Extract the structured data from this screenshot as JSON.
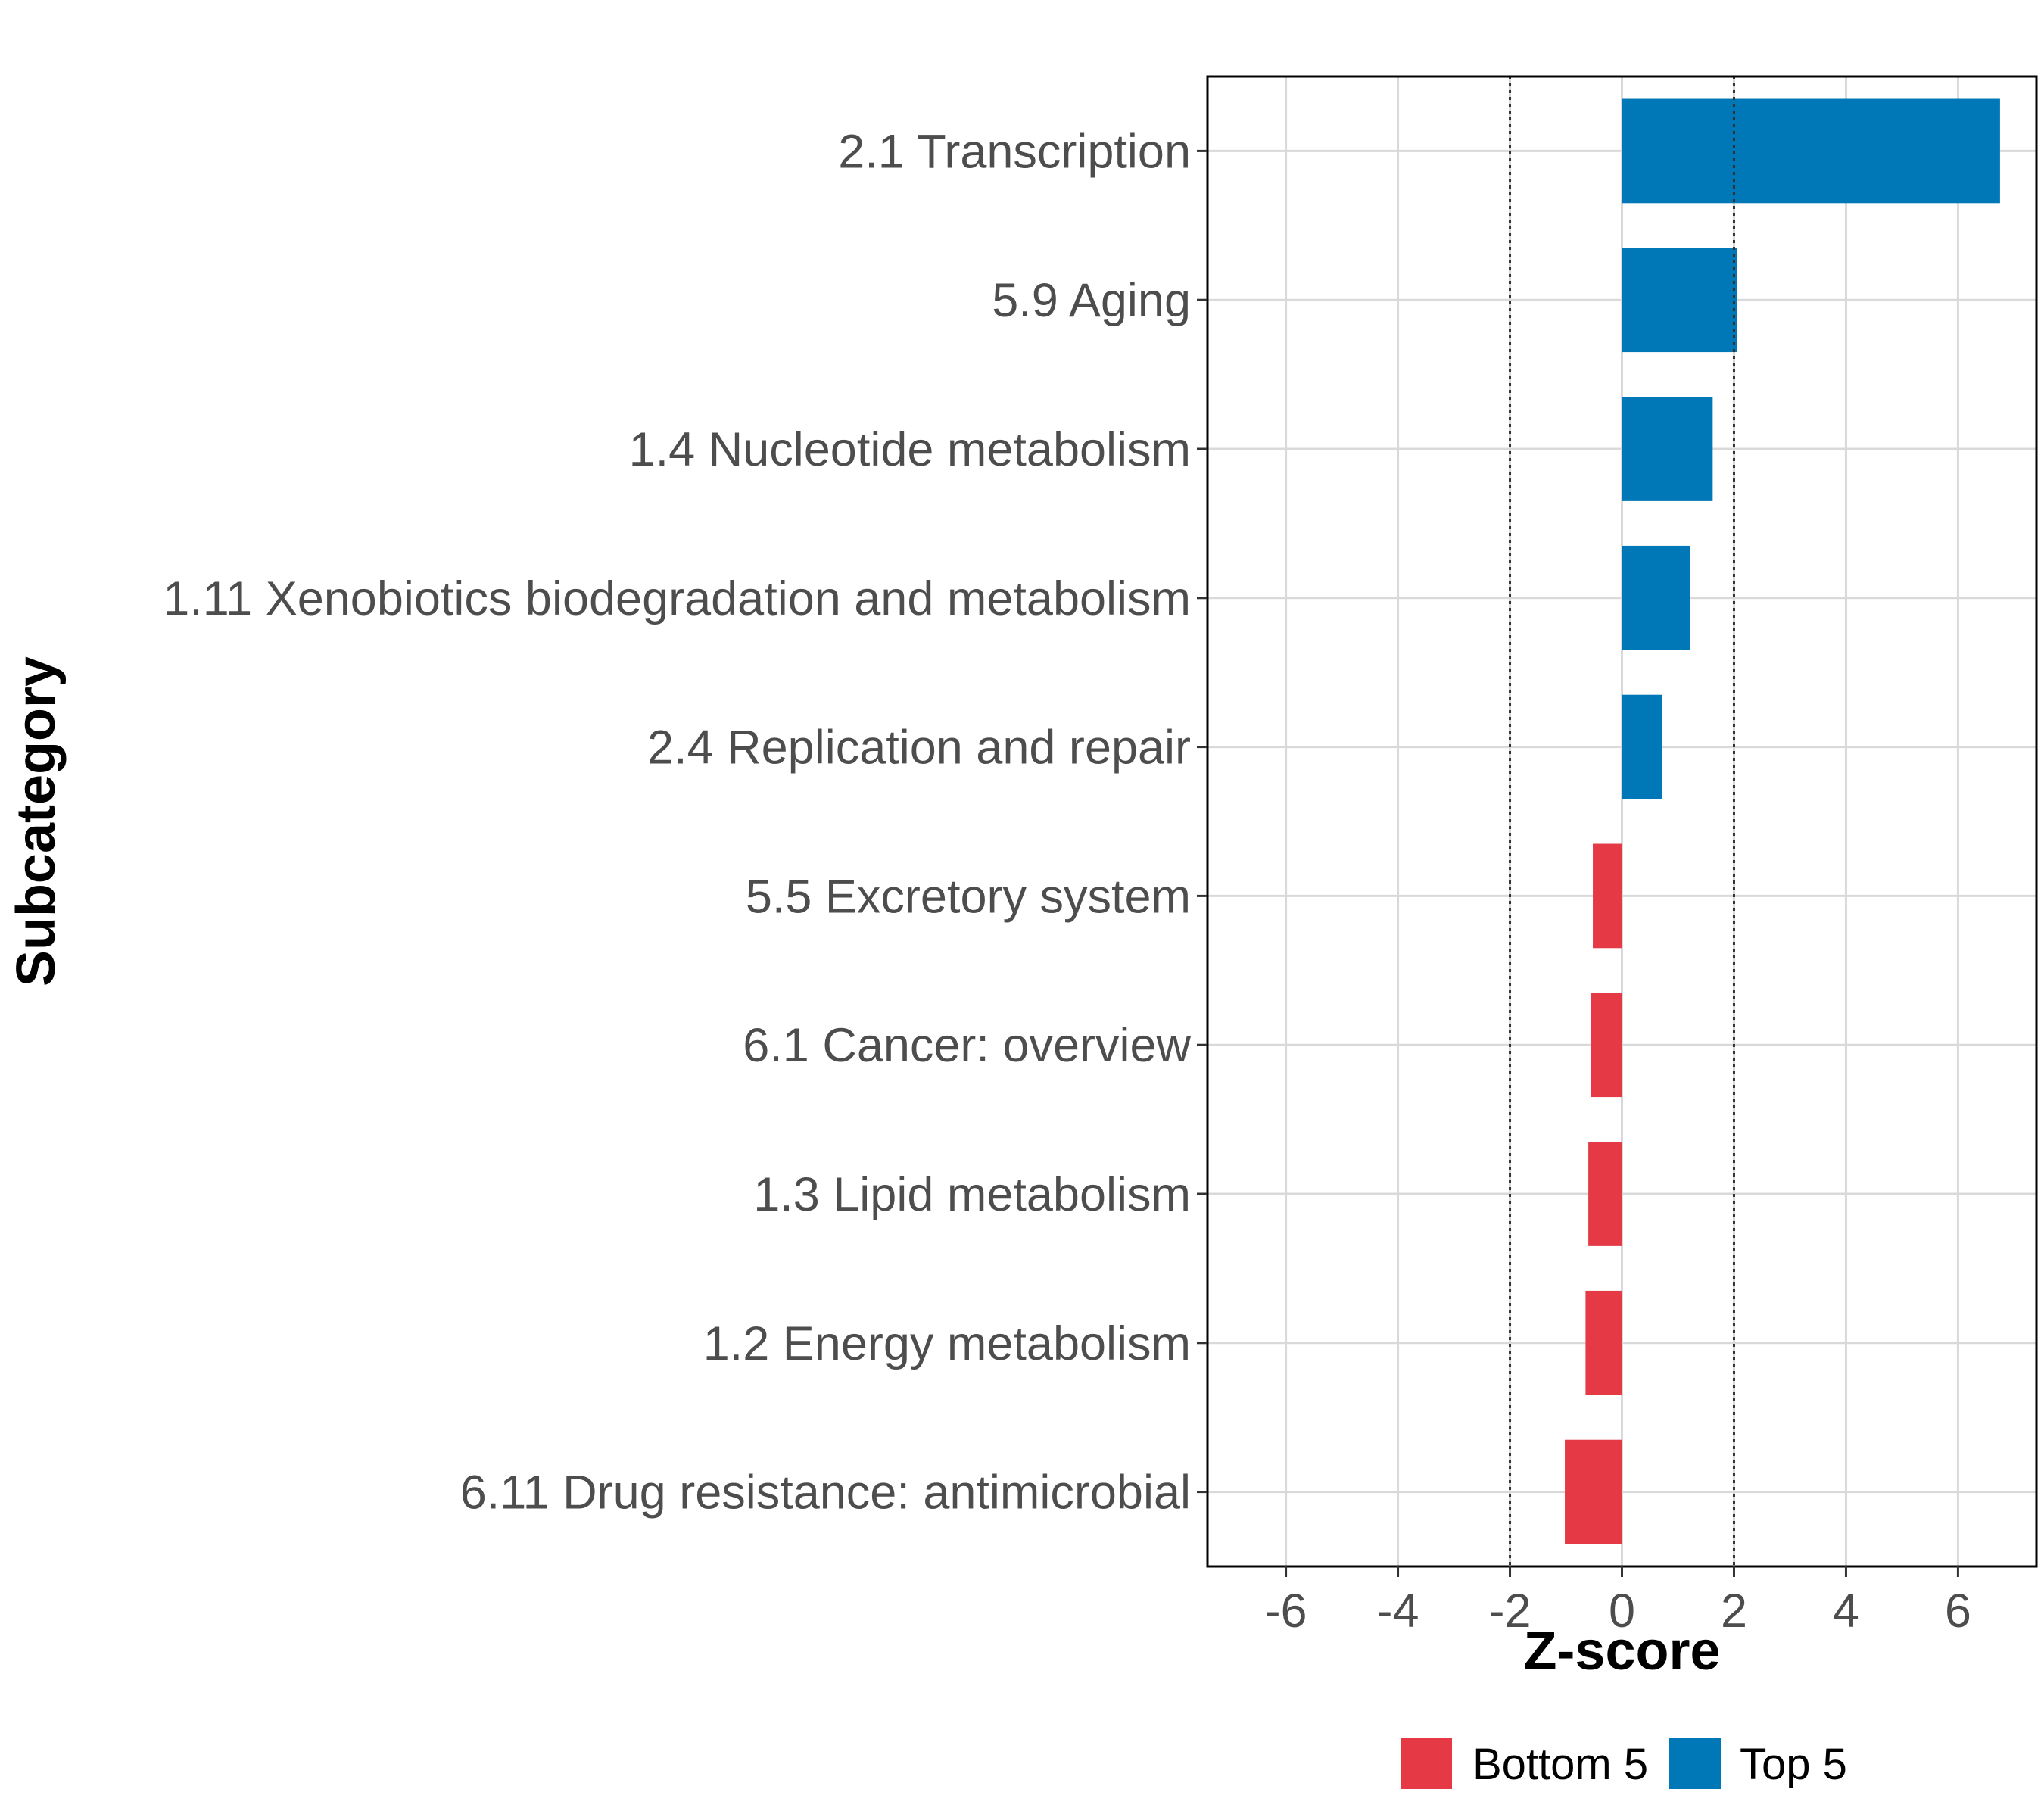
{
  "chart_data": {
    "type": "bar",
    "orientation": "horizontal",
    "categories": [
      "2.1 Transcription",
      "5.9 Aging",
      "1.4 Nucleotide metabolism",
      "1.11 Xenobiotics biodegradation and metabolism",
      "2.4 Replication and repair",
      "5.5 Excretory system",
      "6.1 Cancer: overview",
      "1.3 Lipid metabolism",
      "1.2 Energy metabolism",
      "6.11 Drug resistance: antimicrobial"
    ],
    "values": [
      6.75,
      2.05,
      1.62,
      1.22,
      0.72,
      -0.52,
      -0.55,
      -0.6,
      -0.65,
      -1.02
    ],
    "groups": [
      "Top 5",
      "Top 5",
      "Top 5",
      "Top 5",
      "Top 5",
      "Bottom 5",
      "Bottom 5",
      "Bottom 5",
      "Bottom 5",
      "Bottom 5"
    ],
    "xlabel": "Z-score",
    "ylabel": "Subcategory",
    "xlim": [
      -7.4,
      7.4
    ],
    "xticks": [
      -6,
      -4,
      -2,
      0,
      2,
      4,
      6
    ],
    "xtick_labels": [
      "-6",
      "-4",
      "-2",
      "0",
      "2",
      "4",
      "6"
    ],
    "reference_lines": [
      -2,
      2
    ],
    "grid": true,
    "legend": {
      "placement": "bottom",
      "entries": [
        {
          "label": "Bottom 5",
          "color": "#e53946"
        },
        {
          "label": "Top 5",
          "color": "#0077b6"
        }
      ]
    },
    "colors": {
      "Top 5": "#0077b6",
      "Bottom 5": "#e53946"
    }
  }
}
